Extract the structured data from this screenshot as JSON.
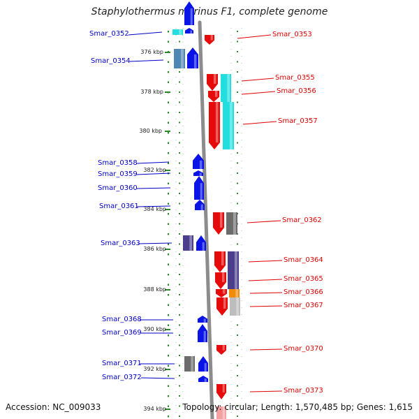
{
  "title": "Staphylothermus marinus F1, complete genome",
  "accession": "Accession: NC_009033",
  "summary": "Topology: circular; Length: 1,570,485 bp; Genes: 1,615",
  "colors": {
    "forward_blue": "#0a14e6",
    "reverse_red": "#e60a0a",
    "cyan": "#22dede",
    "steel": "#4e86b4",
    "gray": "#6c6c6c",
    "purple": "#4a3e8c",
    "orange": "#f28a0a",
    "light_gray": "#bdbdbd",
    "backbone": "#8c8c8c",
    "dots": "#2a8a2a"
  },
  "scale_ticks": [
    "376 kbp",
    "378 kbp",
    "380 kbp",
    "382 kbp",
    "384 kbp",
    "386 kbp",
    "388 kbp",
    "390 kbp",
    "392 kbp",
    "394 kbp"
  ],
  "genes_left": [
    {
      "name": "Smar_0352"
    },
    {
      "name": "Smar_0354"
    },
    {
      "name": "Smar_0358"
    },
    {
      "name": "Smar_0359"
    },
    {
      "name": "Smar_0360"
    },
    {
      "name": "Smar_0361"
    },
    {
      "name": "Smar_0363"
    },
    {
      "name": "Smar_0368"
    },
    {
      "name": "Smar_0369"
    },
    {
      "name": "Smar_0371"
    },
    {
      "name": "Smar_0372"
    }
  ],
  "genes_right": [
    {
      "name": "Smar_0353"
    },
    {
      "name": "Smar_0355"
    },
    {
      "name": "Smar_0356"
    },
    {
      "name": "Smar_0357"
    },
    {
      "name": "Smar_0362"
    },
    {
      "name": "Smar_0364"
    },
    {
      "name": "Smar_0365"
    },
    {
      "name": "Smar_0366"
    },
    {
      "name": "Smar_0367"
    },
    {
      "name": "Smar_0370"
    },
    {
      "name": "Smar_0373"
    }
  ]
}
